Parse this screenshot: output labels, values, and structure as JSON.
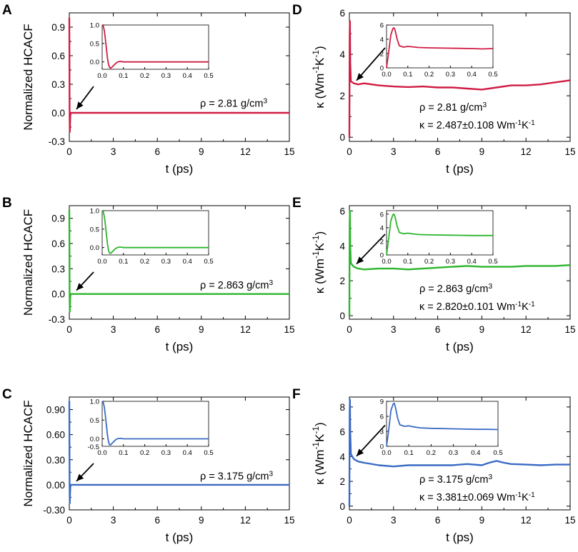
{
  "chart_data": [
    {
      "panel": "A",
      "type": "line",
      "kind": "hcacf",
      "xlabel": "t (ps)",
      "ylabel": "Normalized HCACF",
      "xlim": [
        0,
        15
      ],
      "ylim": [
        -0.3,
        1.05
      ],
      "xticks": [
        "0",
        "3",
        "6",
        "9",
        "12",
        "15"
      ],
      "yticks": [
        "-0.3",
        "0.0",
        "0.3",
        "0.6",
        "0.9"
      ],
      "color": "#d01c44",
      "annotation": [
        "ρ = 2.81 g/cm³"
      ],
      "series": [
        {
          "name": "HCACF",
          "x": [
            0,
            0.01,
            0.02,
            0.035,
            0.05,
            0.07,
            0.1,
            0.15,
            0.3,
            15
          ],
          "y": [
            1.0,
            0.55,
            0.02,
            -0.2,
            -0.12,
            -0.03,
            0.0,
            0.0,
            0.0,
            0.0
          ]
        }
      ],
      "inset": {
        "xlim": [
          0,
          0.5
        ],
        "ylim": [
          -0.2,
          1.0
        ],
        "xticks": [
          "0.0",
          "0.1",
          "0.2",
          "0.3",
          "0.4",
          "0.5"
        ],
        "yticks": [
          "0.0",
          "0.5",
          "1.0"
        ],
        "x": [
          0,
          0.005,
          0.01,
          0.015,
          0.02,
          0.025,
          0.03,
          0.035,
          0.04,
          0.05,
          0.06,
          0.07,
          0.08,
          0.09,
          0.1,
          0.12,
          0.15,
          0.2,
          0.3,
          0.4,
          0.5
        ],
        "y": [
          1.0,
          0.97,
          0.85,
          0.62,
          0.35,
          0.1,
          -0.07,
          -0.15,
          -0.17,
          -0.12,
          -0.06,
          -0.01,
          0.01,
          0.01,
          0.0,
          0.0,
          0.0,
          0.0,
          0.0,
          0.0,
          0.0
        ]
      }
    },
    {
      "panel": "B",
      "type": "line",
      "kind": "hcacf",
      "xlabel": "t (ps)",
      "ylabel": "Normalized HCACF",
      "xlim": [
        0,
        15
      ],
      "ylim": [
        -0.3,
        1.05
      ],
      "xticks": [
        "0",
        "3",
        "6",
        "9",
        "12",
        "15"
      ],
      "yticks": [
        "-0.3",
        "0.0",
        "0.3",
        "0.6",
        "0.9"
      ],
      "color": "#2db52d",
      "annotation": [
        "ρ = 2.863 g/cm³"
      ],
      "series": [
        {
          "name": "HCACF",
          "x": [
            0,
            0.01,
            0.02,
            0.035,
            0.05,
            0.07,
            0.1,
            0.15,
            0.3,
            15
          ],
          "y": [
            1.0,
            0.55,
            0.02,
            -0.21,
            -0.12,
            -0.03,
            0.0,
            0.0,
            0.0,
            0.0
          ]
        }
      ],
      "inset": {
        "xlim": [
          0,
          0.5
        ],
        "ylim": [
          -0.2,
          1.0
        ],
        "xticks": [
          "0.0",
          "0.1",
          "0.2",
          "0.3",
          "0.4",
          "0.5"
        ],
        "yticks": [
          "0.0",
          "0.5",
          "1.0"
        ],
        "x": [
          0,
          0.005,
          0.01,
          0.015,
          0.02,
          0.025,
          0.03,
          0.035,
          0.04,
          0.05,
          0.06,
          0.07,
          0.08,
          0.09,
          0.1,
          0.12,
          0.15,
          0.2,
          0.3,
          0.4,
          0.5
        ],
        "y": [
          1.0,
          0.97,
          0.85,
          0.62,
          0.35,
          0.1,
          -0.08,
          -0.15,
          -0.16,
          -0.1,
          -0.04,
          0.0,
          0.01,
          0.01,
          0.0,
          0.0,
          0.0,
          0.0,
          0.0,
          0.0,
          0.0
        ]
      }
    },
    {
      "panel": "C",
      "type": "line",
      "kind": "hcacf",
      "xlabel": "t (ps)",
      "ylabel": "Normalized HCACF",
      "xlim": [
        0,
        15
      ],
      "ylim": [
        -0.3,
        1.05
      ],
      "xticks": [
        "0",
        "3",
        "6",
        "9",
        "12",
        "15"
      ],
      "yticks": [
        "-0.30",
        "0.00",
        "0.30",
        "0.60",
        "0.90"
      ],
      "color": "#3a6bc4",
      "annotation": [
        "ρ = 3.175 g/cm³"
      ],
      "series": [
        {
          "name": "HCACF",
          "x": [
            0,
            0.01,
            0.02,
            0.035,
            0.05,
            0.07,
            0.1,
            0.15,
            0.3,
            15
          ],
          "y": [
            1.0,
            0.55,
            0.02,
            -0.22,
            -0.12,
            -0.03,
            0.0,
            0.0,
            0.0,
            0.0
          ]
        }
      ],
      "inset": {
        "xlim": [
          0,
          0.5
        ],
        "ylim": [
          -0.2,
          1.0
        ],
        "xticks": [
          "0.0",
          "0.1",
          "0.2",
          "0.3",
          "0.4",
          "0.5"
        ],
        "yticks": [
          "-0.5",
          "0.0",
          "0.5",
          "1.0"
        ],
        "x": [
          0,
          0.005,
          0.01,
          0.015,
          0.02,
          0.025,
          0.03,
          0.035,
          0.04,
          0.05,
          0.06,
          0.07,
          0.08,
          0.09,
          0.1,
          0.12,
          0.15,
          0.2,
          0.3,
          0.4,
          0.5
        ],
        "y": [
          1.0,
          0.97,
          0.85,
          0.62,
          0.35,
          0.1,
          -0.08,
          -0.16,
          -0.16,
          -0.1,
          -0.04,
          0.0,
          0.01,
          0.01,
          0.0,
          0.0,
          0.0,
          0.0,
          0.0,
          0.0,
          0.0
        ]
      }
    },
    {
      "panel": "D",
      "type": "line",
      "kind": "kappa",
      "xlabel": "t (ps)",
      "ylabel": "κ (Wm⁻¹K⁻¹)",
      "xlim": [
        0,
        15
      ],
      "ylim": [
        -0.2,
        6
      ],
      "xticks": [
        "0",
        "3",
        "6",
        "9",
        "12",
        "15"
      ],
      "yticks": [
        "0",
        "2",
        "4",
        "6"
      ],
      "color": "#d01c44",
      "annotation": [
        "ρ = 2.81 g/cm³",
        "κ = 2.487±0.108 Wm⁻¹K⁻¹"
      ],
      "series": [
        {
          "name": "κ",
          "x": [
            0,
            0.02,
            0.04,
            0.06,
            0.1,
            0.3,
            0.6,
            1,
            2,
            3,
            4,
            5,
            6,
            7,
            8,
            9,
            10,
            11,
            12,
            13,
            14,
            15
          ],
          "y": [
            0,
            4.8,
            5.6,
            3.6,
            2.7,
            2.6,
            2.55,
            2.6,
            2.5,
            2.45,
            2.42,
            2.45,
            2.4,
            2.4,
            2.35,
            2.3,
            2.4,
            2.5,
            2.5,
            2.55,
            2.65,
            2.75
          ]
        }
      ],
      "inset": {
        "xlim": [
          0,
          0.5
        ],
        "ylim": [
          0,
          6
        ],
        "xticks": [
          "0.0",
          "0.1",
          "0.2",
          "0.3",
          "0.4",
          "0.5"
        ],
        "yticks": [
          "0",
          "2",
          "4",
          "6"
        ],
        "x": [
          0,
          0.01,
          0.02,
          0.03,
          0.035,
          0.04,
          0.05,
          0.06,
          0.08,
          0.1,
          0.12,
          0.15,
          0.2,
          0.3,
          0.4,
          0.45,
          0.5
        ],
        "y": [
          0,
          2.2,
          4.6,
          5.5,
          5.6,
          5.3,
          4.0,
          3.1,
          2.9,
          3.0,
          2.95,
          2.85,
          2.8,
          2.75,
          2.7,
          2.65,
          2.7
        ]
      }
    },
    {
      "panel": "E",
      "type": "line",
      "kind": "kappa",
      "xlabel": "t (ps)",
      "ylabel": "κ (Wm⁻¹K⁻¹)",
      "xlim": [
        0,
        15
      ],
      "ylim": [
        -0.2,
        6.3
      ],
      "xticks": [
        "0",
        "3",
        "6",
        "9",
        "12",
        "15"
      ],
      "yticks": [
        "0",
        "2",
        "4",
        "6"
      ],
      "color": "#2db52d",
      "annotation": [
        "ρ = 2.863 g/cm³",
        "κ = 2.820±0.101 Wm⁻¹K⁻¹"
      ],
      "series": [
        {
          "name": "κ",
          "x": [
            0,
            0.02,
            0.04,
            0.06,
            0.1,
            0.3,
            0.6,
            1,
            2,
            3,
            4,
            5,
            6,
            7,
            8,
            9,
            10,
            11,
            12,
            13,
            14,
            15
          ],
          "y": [
            0,
            5.2,
            6.0,
            4.0,
            3.0,
            2.8,
            2.7,
            2.65,
            2.7,
            2.7,
            2.65,
            2.7,
            2.75,
            2.8,
            2.85,
            2.8,
            2.8,
            2.8,
            2.85,
            2.85,
            2.85,
            2.9
          ]
        }
      ],
      "inset": {
        "xlim": [
          0,
          0.5
        ],
        "ylim": [
          0,
          6.5
        ],
        "xticks": [
          "0.0",
          "0.1",
          "0.2",
          "0.3",
          "0.4",
          "0.5"
        ],
        "yticks": [
          "0",
          "2",
          "4",
          "6"
        ],
        "x": [
          0,
          0.01,
          0.02,
          0.03,
          0.035,
          0.04,
          0.05,
          0.06,
          0.08,
          0.1,
          0.12,
          0.15,
          0.2,
          0.3,
          0.4,
          0.45,
          0.5
        ],
        "y": [
          0,
          2.4,
          5.0,
          5.9,
          6.0,
          5.6,
          4.2,
          3.3,
          3.1,
          3.2,
          3.1,
          3.0,
          2.95,
          2.9,
          2.85,
          2.85,
          2.85
        ]
      }
    },
    {
      "panel": "F",
      "type": "line",
      "kind": "kappa",
      "xlabel": "t (ps)",
      "ylabel": "κ (Wm⁻¹K⁻¹)",
      "xlim": [
        0,
        15
      ],
      "ylim": [
        -0.3,
        8.8
      ],
      "xticks": [
        "0",
        "3",
        "6",
        "9",
        "12",
        "15"
      ],
      "yticks": [
        "0",
        "2",
        "4",
        "6",
        "8"
      ],
      "color": "#3a6bc4",
      "annotation": [
        "ρ = 3.175 g/cm³",
        "κ = 3.381±0.069 Wm⁻¹K⁻¹"
      ],
      "series": [
        {
          "name": "κ",
          "x": [
            0,
            0.02,
            0.04,
            0.06,
            0.1,
            0.3,
            0.6,
            1,
            2,
            3,
            4,
            5,
            6,
            7,
            8,
            9,
            9.5,
            10,
            10.5,
            11,
            12,
            13,
            14,
            15
          ],
          "y": [
            0,
            7.5,
            8.6,
            6.0,
            4.2,
            3.8,
            3.6,
            3.5,
            3.3,
            3.2,
            3.3,
            3.3,
            3.3,
            3.3,
            3.4,
            3.3,
            3.5,
            3.65,
            3.5,
            3.4,
            3.35,
            3.3,
            3.35,
            3.35
          ]
        }
      ],
      "inset": {
        "xlim": [
          0,
          0.5
        ],
        "ylim": [
          0,
          9
        ],
        "xticks": [
          "0.0",
          "0.1",
          "0.2",
          "0.3",
          "0.4",
          "0.5"
        ],
        "yticks": [
          "0",
          "3",
          "6",
          "9"
        ],
        "x": [
          0,
          0.01,
          0.02,
          0.03,
          0.035,
          0.04,
          0.05,
          0.06,
          0.08,
          0.1,
          0.12,
          0.15,
          0.2,
          0.3,
          0.4,
          0.45,
          0.5
        ],
        "y": [
          0,
          3.3,
          7.2,
          8.5,
          8.6,
          7.8,
          5.6,
          4.3,
          4.0,
          4.1,
          3.9,
          3.7,
          3.6,
          3.5,
          3.4,
          3.4,
          3.35
        ]
      }
    }
  ]
}
